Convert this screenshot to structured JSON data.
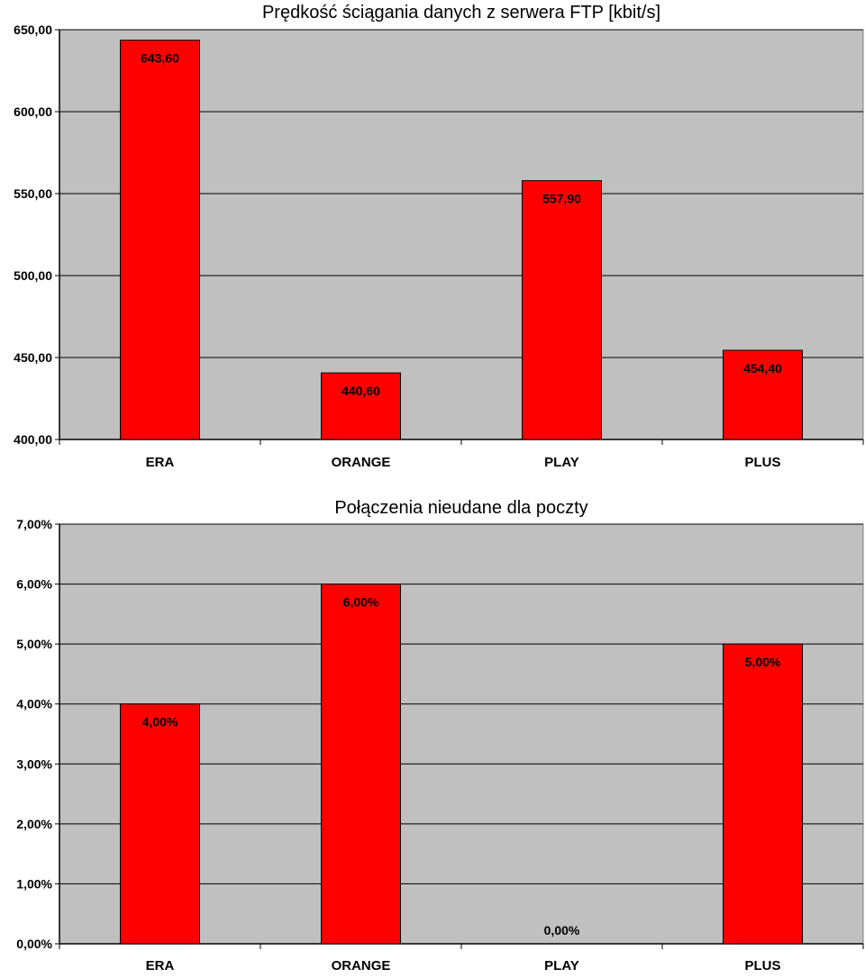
{
  "chart_data": [
    {
      "type": "bar",
      "title": "Prędkość ściągania danych z serwera FTP [kbit/s]",
      "categories": [
        "ERA",
        "ORANGE",
        "PLAY",
        "PLUS"
      ],
      "values": [
        643.6,
        440.6,
        557.9,
        454.4
      ],
      "data_labels": [
        "643,60",
        "440,60",
        "557,90",
        "454,40"
      ],
      "ylim": [
        400,
        650
      ],
      "yticks": [
        400,
        450,
        500,
        550,
        600,
        650
      ],
      "ytick_labels": [
        "400,00",
        "450,00",
        "500,00",
        "550,00",
        "600,00",
        "650,00"
      ],
      "xlabel": "",
      "ylabel": "",
      "grid": true,
      "legend": "none"
    },
    {
      "type": "bar",
      "title": "Połączenia nieudane dla poczty",
      "categories": [
        "ERA",
        "ORANGE",
        "PLAY",
        "PLUS"
      ],
      "values": [
        4,
        6,
        0,
        5
      ],
      "data_labels": [
        "4,00%",
        "6,00%",
        "0,00%",
        "5,00%"
      ],
      "ylim": [
        0,
        7
      ],
      "yticks": [
        0,
        1,
        2,
        3,
        4,
        5,
        6,
        7
      ],
      "ytick_labels": [
        "0,00%",
        "1,00%",
        "2,00%",
        "3,00%",
        "4,00%",
        "5,00%",
        "6,00%",
        "7,00%"
      ],
      "xlabel": "",
      "ylabel": "",
      "grid": true,
      "legend": "none"
    }
  ],
  "colors": {
    "plot_background": "#C0C0C0",
    "bar_fill": "#FF0000",
    "bar_stroke": "#000000",
    "gridline": "#000000",
    "text": "#000000"
  }
}
